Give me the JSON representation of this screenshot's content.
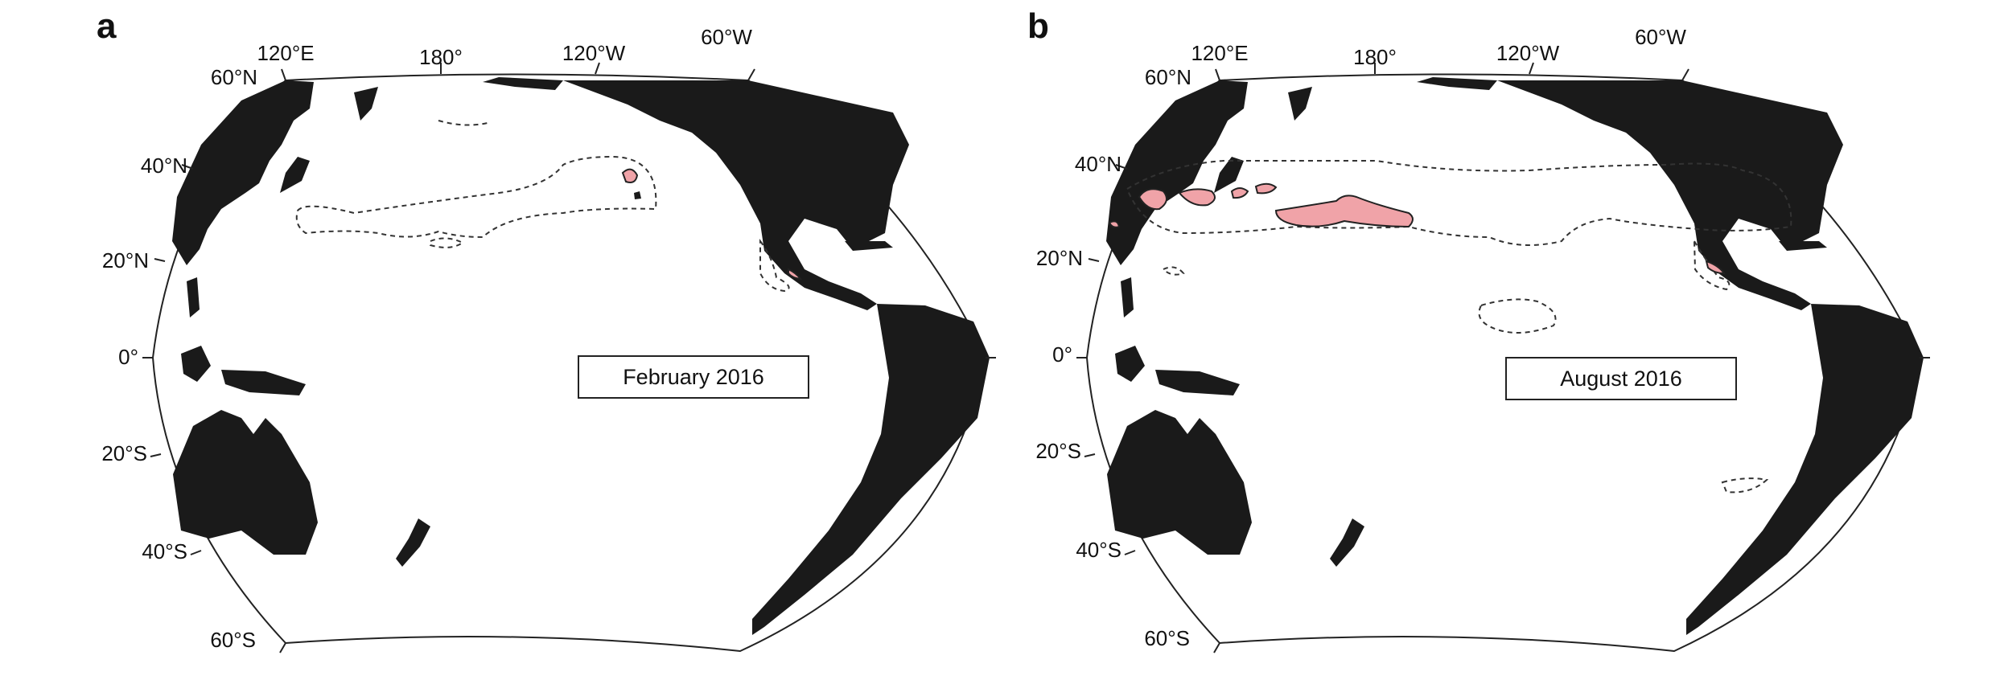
{
  "panels": [
    {
      "letter": "a",
      "date": "February 2016",
      "lon_labels": [
        "120°E",
        "180°",
        "120°W",
        "60°W"
      ],
      "lat_labels": [
        "60°N",
        "40°N",
        "20°N",
        "0°",
        "20°S",
        "40°S",
        "60°S"
      ]
    },
    {
      "letter": "b",
      "date": "August 2016",
      "lon_labels": [
        "120°E",
        "180°",
        "120°W",
        "60°W"
      ],
      "lat_labels": [
        "60°N",
        "40°N",
        "20°N",
        "0°",
        "20°S",
        "40°S",
        "60°S"
      ]
    }
  ],
  "colors": {
    "land": "#1a1a1a",
    "highlight_fill": "#f0a3a8",
    "contour": "#333333"
  }
}
